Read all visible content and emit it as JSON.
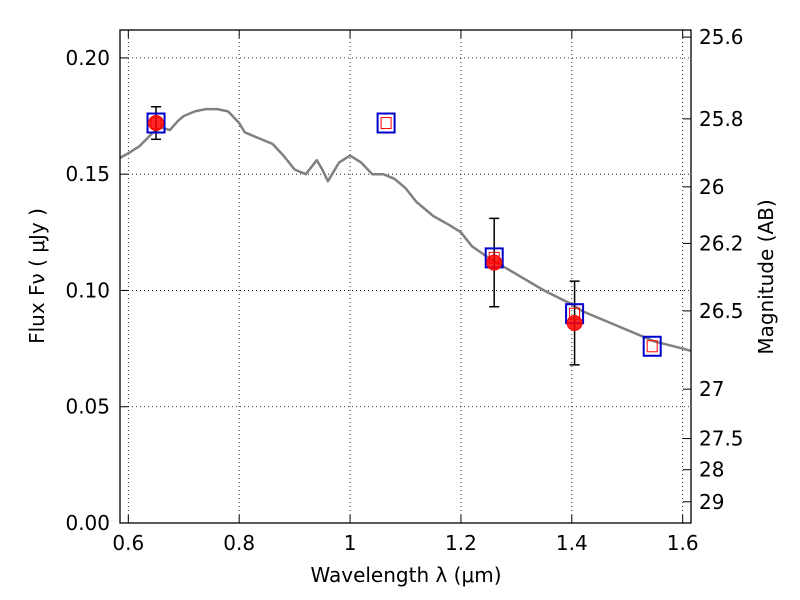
{
  "chart_data": {
    "type": "scatter",
    "xlabel": "Wavelength  λ (μm)",
    "ylabel": "Flux  Fν  ( μJy )",
    "y2label": "Magnitude (AB)",
    "xlim": [
      0.585,
      1.615
    ],
    "ylim": [
      0.0,
      0.212
    ],
    "grid": true,
    "x_ticks": [
      0.6,
      0.8,
      1.0,
      1.2,
      1.4,
      1.6
    ],
    "x_tick_labels": [
      "0.6",
      "0.8",
      "1",
      "1.2",
      "1.4",
      "1.6"
    ],
    "y_ticks": [
      0.0,
      0.05,
      0.1,
      0.15,
      0.2
    ],
    "y_tick_labels": [
      "0.00",
      "0.05",
      "0.10",
      "0.15",
      "0.20"
    ],
    "mag_ticks": [
      25.6,
      25.8,
      26,
      26.2,
      26.5,
      27,
      27.5,
      28,
      29
    ],
    "mag_tick_labels": [
      "25.6",
      "25.8",
      "26",
      "26.2",
      "26.5",
      "27",
      "27.5",
      "28",
      "29"
    ],
    "series": [
      {
        "kind": "model-spectrum",
        "color": "#808080",
        "x": [
          0.585,
          0.6,
          0.62,
          0.645,
          0.66,
          0.675,
          0.69,
          0.7,
          0.72,
          0.74,
          0.76,
          0.78,
          0.8,
          0.81,
          0.83,
          0.86,
          0.88,
          0.9,
          0.92,
          0.94,
          0.95,
          0.96,
          0.98,
          1.0,
          1.02,
          1.04,
          1.06,
          1.08,
          1.1,
          1.12,
          1.15,
          1.18,
          1.2,
          1.22,
          1.25,
          1.3,
          1.35,
          1.4,
          1.42,
          1.45,
          1.5,
          1.55,
          1.6,
          1.615
        ],
        "y": [
          0.157,
          0.159,
          0.162,
          0.168,
          0.17,
          0.169,
          0.173,
          0.175,
          0.177,
          0.178,
          0.178,
          0.177,
          0.172,
          0.168,
          0.166,
          0.163,
          0.158,
          0.152,
          0.15,
          0.156,
          0.152,
          0.147,
          0.155,
          0.158,
          0.155,
          0.15,
          0.15,
          0.148,
          0.144,
          0.138,
          0.132,
          0.128,
          0.125,
          0.119,
          0.114,
          0.107,
          0.1,
          0.094,
          0.091,
          0.088,
          0.083,
          0.078,
          0.075,
          0.074
        ]
      },
      {
        "kind": "model-photometry",
        "marker": "open-square",
        "color": "#0000cc",
        "inner_color": "#ff0000",
        "x": [
          0.65,
          1.065,
          1.26,
          1.405,
          1.545
        ],
        "y": [
          0.172,
          0.172,
          0.114,
          0.09,
          0.076
        ]
      },
      {
        "kind": "observed",
        "marker": "filled-circle",
        "color": "#ff0000",
        "x": [
          0.65,
          1.26,
          1.405
        ],
        "y": [
          0.172,
          0.112,
          0.086
        ],
        "err": [
          0.007,
          0.019,
          0.018
        ]
      }
    ]
  }
}
